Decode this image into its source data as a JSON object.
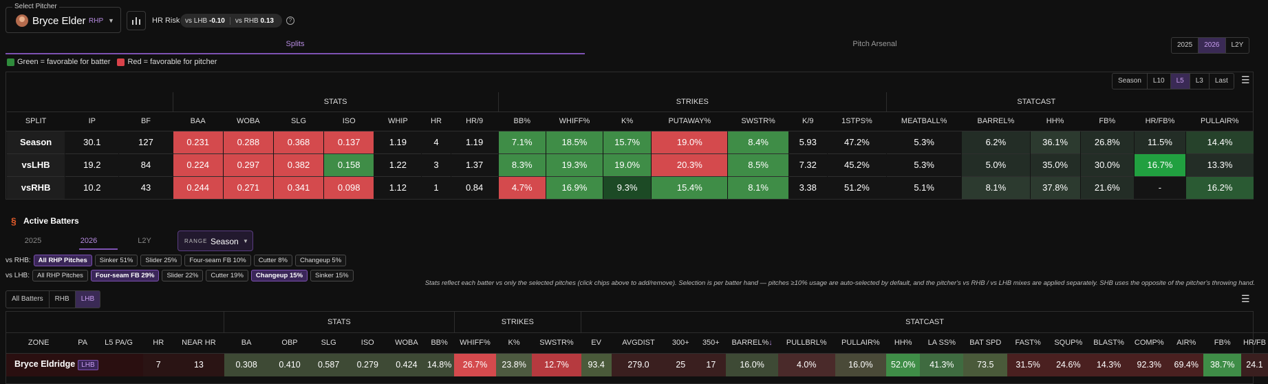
{
  "pitcher_select": {
    "legend": "Select Pitcher",
    "name": "Bryce Elder",
    "hand": "RHP"
  },
  "hr_risk": {
    "label": "HR Risk",
    "vs_lhb_label": "vs LHB",
    "vs_lhb": "-0.10",
    "vs_rhb_label": "vs RHB",
    "vs_rhb": "0.13"
  },
  "tabs": {
    "splits": "Splits",
    "arsenal": "Pitch Arsenal"
  },
  "year_seg": [
    {
      "label": "2025",
      "on": false
    },
    {
      "label": "2026",
      "on": true
    },
    {
      "label": "L2Y",
      "on": false
    }
  ],
  "legend": {
    "green": "Green = favorable for batter",
    "red": "Red = favorable for pitcher",
    "green_color": "#2f8c3c",
    "red_color": "#d9424a"
  },
  "range_seg": [
    {
      "label": "Season",
      "on": false
    },
    {
      "label": "L10",
      "on": false
    },
    {
      "label": "L5",
      "on": true
    },
    {
      "label": "L3",
      "on": false
    },
    {
      "label": "Last",
      "on": false
    }
  ],
  "splits_table": {
    "groups": [
      {
        "label": "",
        "span": 3
      },
      {
        "label": "STATS",
        "span": 7
      },
      {
        "label": "STRIKES",
        "span": 7
      },
      {
        "label": "STATCAST",
        "span": 5
      }
    ],
    "columns": [
      "SPLIT",
      "IP",
      "BF",
      "BAA",
      "WOBA",
      "SLG",
      "ISO",
      "WHIP",
      "HR",
      "HR/9",
      "BB%",
      "WHIFF%",
      "K%",
      "PUTAWAY%",
      "SWSTR%",
      "K/9",
      "1STPS%",
      "MEATBALL%",
      "BARREL%",
      "HH%",
      "FB%",
      "HR/FB%",
      "PULLAIR%"
    ],
    "rows": [
      {
        "cells": [
          "Season",
          "30.1",
          "127",
          "0.231",
          "0.288",
          "0.368",
          "0.137",
          "1.19",
          "4",
          "1.19",
          "7.1%",
          "18.5%",
          "15.7%",
          "19.0%",
          "8.4%",
          "5.93",
          "47.2%",
          "5.3%",
          "6.2%",
          "36.1%",
          "26.8%",
          "11.5%",
          "14.4%"
        ],
        "colors": [
          "",
          "",
          "",
          "#d44a4d",
          "#d44a4d",
          "#d44a4d",
          "#d44a4d",
          "",
          "",
          "",
          "#3f8d47",
          "#3f8d47",
          "#3f8d47",
          "#d44a4d",
          "#3f8d47",
          "",
          "",
          "",
          "#232d26",
          "#2c3a2f",
          "#232d26",
          "#232d26",
          "#26422b"
        ]
      },
      {
        "cells": [
          "vsLHB",
          "19.2",
          "84",
          "0.224",
          "0.297",
          "0.382",
          "0.158",
          "1.22",
          "3",
          "1.37",
          "8.3%",
          "19.3%",
          "19.0%",
          "20.3%",
          "8.5%",
          "7.32",
          "45.2%",
          "5.3%",
          "5.0%",
          "35.0%",
          "30.0%",
          "16.7%",
          "13.3%"
        ],
        "colors": [
          "",
          "",
          "",
          "#d44a4d",
          "#d44a4d",
          "#d44a4d",
          "#3f8d47",
          "",
          "",
          "",
          "#3f8d47",
          "#3f8d47",
          "#3f8d47",
          "#d44a4d",
          "#3f8d47",
          "",
          "",
          "",
          "#232d26",
          "#232d26",
          "#232d26",
          "#21a040",
          "#232d26"
        ]
      },
      {
        "cells": [
          "vsRHB",
          "10.2",
          "43",
          "0.244",
          "0.271",
          "0.341",
          "0.098",
          "1.12",
          "1",
          "0.84",
          "4.7%",
          "16.9%",
          "9.3%",
          "15.4%",
          "8.1%",
          "3.38",
          "51.2%",
          "5.1%",
          "8.1%",
          "37.8%",
          "21.6%",
          "-",
          "16.2%"
        ],
        "colors": [
          "",
          "",
          "",
          "#d44a4d",
          "#d44a4d",
          "#d44a4d",
          "#d44a4d",
          "",
          "",
          "",
          "#d44a4d",
          "#3f8d47",
          "#1c4a25",
          "#3f8d47",
          "#3f8d47",
          "",
          "",
          "",
          "#2c3a2f",
          "#2c3a2f",
          "#232d26",
          "",
          "#2a5a33"
        ]
      }
    ]
  },
  "active_batters": {
    "title": "Active Batters",
    "years": [
      {
        "label": "2025",
        "on": false
      },
      {
        "label": "2026",
        "on": true
      },
      {
        "label": "L2Y",
        "on": false
      }
    ],
    "range_label": "RANGE",
    "range_value": "Season"
  },
  "vs_rhb": {
    "label": "vs RHB:",
    "chips": [
      {
        "label": "All RHP Pitches",
        "on": true
      },
      {
        "label": "Sinker 51%",
        "on": false
      },
      {
        "label": "Slider 25%",
        "on": false
      },
      {
        "label": "Four-seam FB 10%",
        "on": false
      },
      {
        "label": "Cutter 8%",
        "on": false
      },
      {
        "label": "Changeup 5%",
        "on": false
      }
    ]
  },
  "vs_lhb": {
    "label": "vs LHB:",
    "chips": [
      {
        "label": "All RHP Pitches",
        "on": false
      },
      {
        "label": "Four-seam FB 29%",
        "on": true
      },
      {
        "label": "Slider 22%",
        "on": false
      },
      {
        "label": "Cutter 19%",
        "on": false
      },
      {
        "label": "Changeup 15%",
        "on": true
      },
      {
        "label": "Sinker 15%",
        "on": false
      }
    ]
  },
  "note": "Stats reflect each batter vs only the selected pitches (click chips above to add/remove). Selection is per batter hand — pitches ≥10% usage are auto-selected by default, and the pitcher's vs RHB / vs LHB mixes are applied separately. SHB uses the opposite of the pitcher's throwing hand.",
  "batter_seg": [
    {
      "label": "All Batters",
      "on": false
    },
    {
      "label": "RHB",
      "on": false
    },
    {
      "label": "LHB",
      "on": true
    }
  ],
  "batters_table": {
    "groups": [
      {
        "label": "",
        "span": 5
      },
      {
        "label": "STATS",
        "span": 6
      },
      {
        "label": "STRIKES",
        "span": 3
      },
      {
        "label": "STATCAST",
        "span": 17
      }
    ],
    "columns": [
      "ZONE",
      "PA",
      "L5 PA/G",
      "HR",
      "NEAR HR",
      "BA",
      "OBP",
      "SLG",
      "ISO",
      "WOBA",
      "BB%",
      "WHIFF%",
      "K%",
      "SWSTR%",
      "EV",
      "AVGDIST",
      "300+",
      "350+",
      "BARREL%",
      "PULLBRL%",
      "PULLAIR%",
      "HH%",
      "LA SS%",
      "BAT SPD",
      "FAST%",
      "SQUP%",
      "BLAST%",
      "COMP%",
      "AIR%",
      "FB%",
      "HR/FB"
    ],
    "sort_col": "BARREL%",
    "rows": [
      {
        "name": "Bryce Eldridge",
        "hand": "LHB",
        "cells": [
          "",
          "",
          "",
          "7",
          "13",
          "0.308",
          "0.410",
          "0.587",
          "0.279",
          "0.424",
          "14.8%",
          "26.7%",
          "23.8%",
          "12.7%",
          "93.4",
          "279.0",
          "25",
          "17",
          "16.0%",
          "4.0%",
          "16.0%",
          "52.0%",
          "41.3%",
          "73.5",
          "31.5%",
          "24.6%",
          "14.3%",
          "92.3%",
          "69.4%",
          "38.7%",
          "24.1"
        ],
        "colors": [
          "",
          "",
          "",
          "#2a1414",
          "#2a1414",
          "#3e4a35",
          "#3e4a35",
          "#3e4a35",
          "#3e4a35",
          "#3e4a35",
          "#3e4a35",
          "#d44a4d",
          "#4d5a40",
          "#b63a3f",
          "#4a5a3a",
          "#3a1f1f",
          "#3a1f1f",
          "#3a1f1f",
          "#3e4a35",
          "#4a2a2a",
          "#4a4a38",
          "#3f8d47",
          "#3f6b40",
          "#4a5a3a",
          "#4a2020",
          "#4a2020",
          "#4a2020",
          "#4a2020",
          "#4a2020",
          "#3f8d47",
          "#3a1f1f"
        ]
      }
    ]
  }
}
